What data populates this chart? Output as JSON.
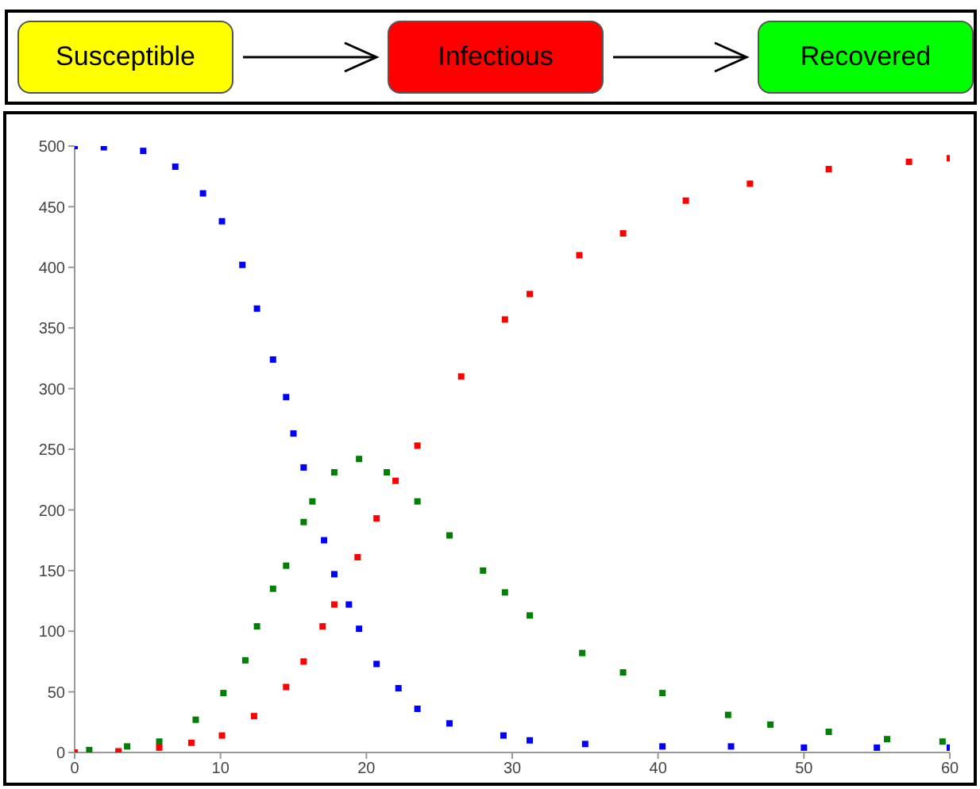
{
  "chart_data": {
    "type": "scatter",
    "annotations": [
      "Susceptible",
      "Infectious",
      "Recovered"
    ],
    "xlim": [
      0,
      60
    ],
    "xticks": [
      0,
      10,
      20,
      30,
      40,
      50,
      60
    ],
    "ylim": [
      0,
      500
    ],
    "yticks": [
      0,
      50,
      100,
      150,
      200,
      250,
      300,
      350,
      400,
      450,
      500
    ],
    "grid": false,
    "legend": false,
    "marker": "square",
    "series": [
      {
        "color": "#0000ff",
        "x": [
          0,
          2,
          4.7,
          6.9,
          8.8,
          10.1,
          11.5,
          12.5,
          13.6,
          14.5,
          15,
          15.7,
          17.1,
          17.8,
          18.8,
          19.5,
          20.7,
          22.2,
          23.5,
          25.7,
          29.4,
          31.2,
          35,
          40.3,
          45,
          50,
          55,
          60
        ],
        "values": [
          500,
          499,
          496,
          483,
          461,
          438,
          402,
          366,
          324,
          293,
          263,
          235,
          175,
          147,
          122,
          102,
          73,
          53,
          36,
          24,
          14,
          10,
          7,
          5,
          5,
          4,
          4,
          4
        ]
      },
      {
        "color": "#008000",
        "x": [
          1,
          3.6,
          5.8,
          8.3,
          10.2,
          11.7,
          12.5,
          13.6,
          14.5,
          15.7,
          16.3,
          17.8,
          19.5,
          21.4,
          23.5,
          25.7,
          28,
          29.5,
          31.2,
          34.8,
          37.6,
          40.3,
          44.8,
          47.7,
          51.7,
          55.7,
          59.5
        ],
        "values": [
          2,
          5,
          9,
          27,
          49,
          76,
          104,
          135,
          154,
          190,
          207,
          231,
          242,
          231,
          207,
          179,
          150,
          132,
          113,
          82,
          66,
          49,
          31,
          23,
          17,
          11,
          9
        ]
      },
      {
        "color": "#ff0000",
        "x": [
          0,
          3,
          5.8,
          8,
          10.1,
          12.3,
          14.5,
          15.7,
          17,
          17.8,
          19.4,
          20.7,
          22,
          23.5,
          26.5,
          29.5,
          31.2,
          34.6,
          37.6,
          41.9,
          46.3,
          51.7,
          57.2,
          60
        ],
        "values": [
          0,
          1,
          4,
          8,
          14,
          30,
          54,
          75,
          104,
          122,
          161,
          193,
          224,
          253,
          310,
          357,
          378,
          410,
          428,
          455,
          469,
          481,
          487,
          490
        ]
      }
    ]
  }
}
